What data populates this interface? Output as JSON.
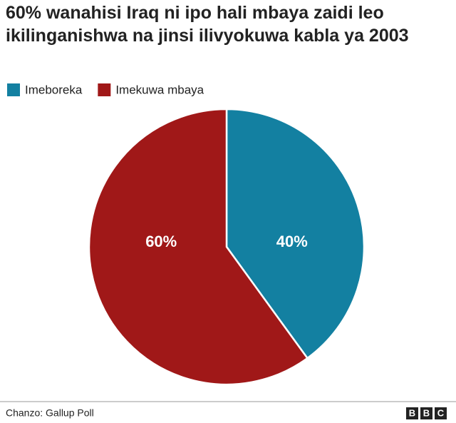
{
  "chart_data": {
    "type": "pie",
    "title": "60% wanahisi Iraq ni ipo hali mbaya zaidi leo ikilinganishwa na jinsi ilivyokuwa kabla ya 2003",
    "categories": [
      "Imeboreka",
      "Imekuwa mbaya"
    ],
    "values": [
      40,
      60
    ],
    "value_labels": [
      "40%",
      "60%"
    ],
    "colors": [
      "#1380a1",
      "#a01818"
    ],
    "legend": "top-left",
    "source": "Chanzo: Gallup Poll",
    "logo": [
      "B",
      "B",
      "C"
    ]
  }
}
